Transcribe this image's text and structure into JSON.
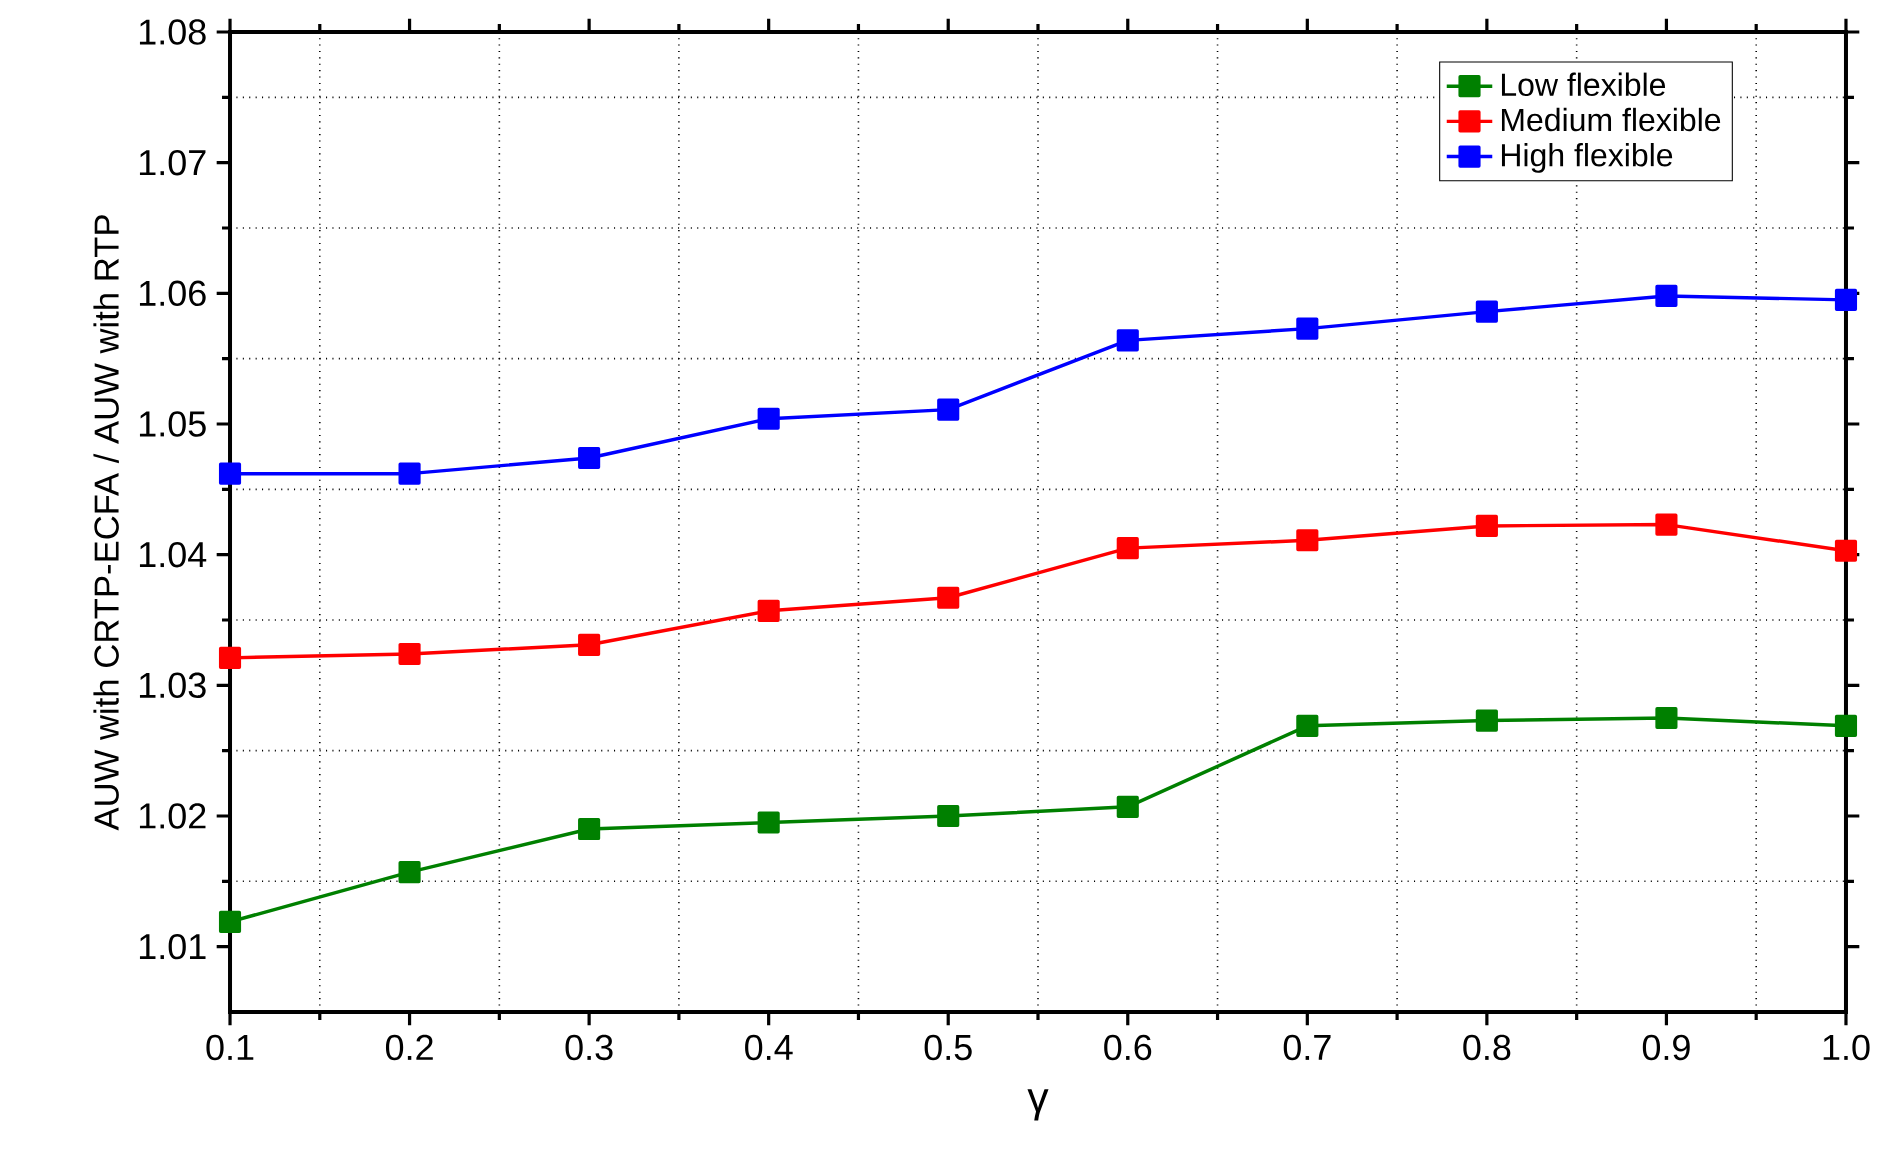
{
  "chart_data": {
    "type": "line",
    "xlabel": "γ",
    "ylabel": "AUW with CRTP-ECFA / AUW with RTP",
    "x": [
      0.1,
      0.2,
      0.3,
      0.4,
      0.5,
      0.6,
      0.7,
      0.8,
      0.9,
      1.0
    ],
    "series": [
      {
        "name": "Low flexible",
        "color": "#008000",
        "values": [
          1.0119,
          1.0157,
          1.019,
          1.0195,
          1.02,
          1.0207,
          1.0269,
          1.0273,
          1.0275,
          1.0269
        ]
      },
      {
        "name": "Medium flexible",
        "color": "#ff0000",
        "values": [
          1.0321,
          1.0324,
          1.0331,
          1.0357,
          1.0367,
          1.0405,
          1.0411,
          1.0422,
          1.0423,
          1.0403
        ]
      },
      {
        "name": "High flexible",
        "color": "#0000ff",
        "values": [
          1.0462,
          1.0462,
          1.0474,
          1.0504,
          1.0511,
          1.0564,
          1.0573,
          1.0586,
          1.0598,
          1.0595
        ]
      }
    ],
    "xlim": [
      0.1,
      1.0
    ],
    "ylim": [
      1.005,
      1.08
    ],
    "xticks": [
      0.1,
      0.2,
      0.3,
      0.4,
      0.5,
      0.6,
      0.7,
      0.8,
      0.9,
      {
        "value": 1.0,
        "label": "1.0"
      }
    ],
    "yticks": [
      1.01,
      1.02,
      1.03,
      1.04,
      1.05,
      1.06,
      1.07,
      1.08
    ],
    "grid": true,
    "legend": "top right",
    "marker": "square",
    "line_style": "solid"
  }
}
